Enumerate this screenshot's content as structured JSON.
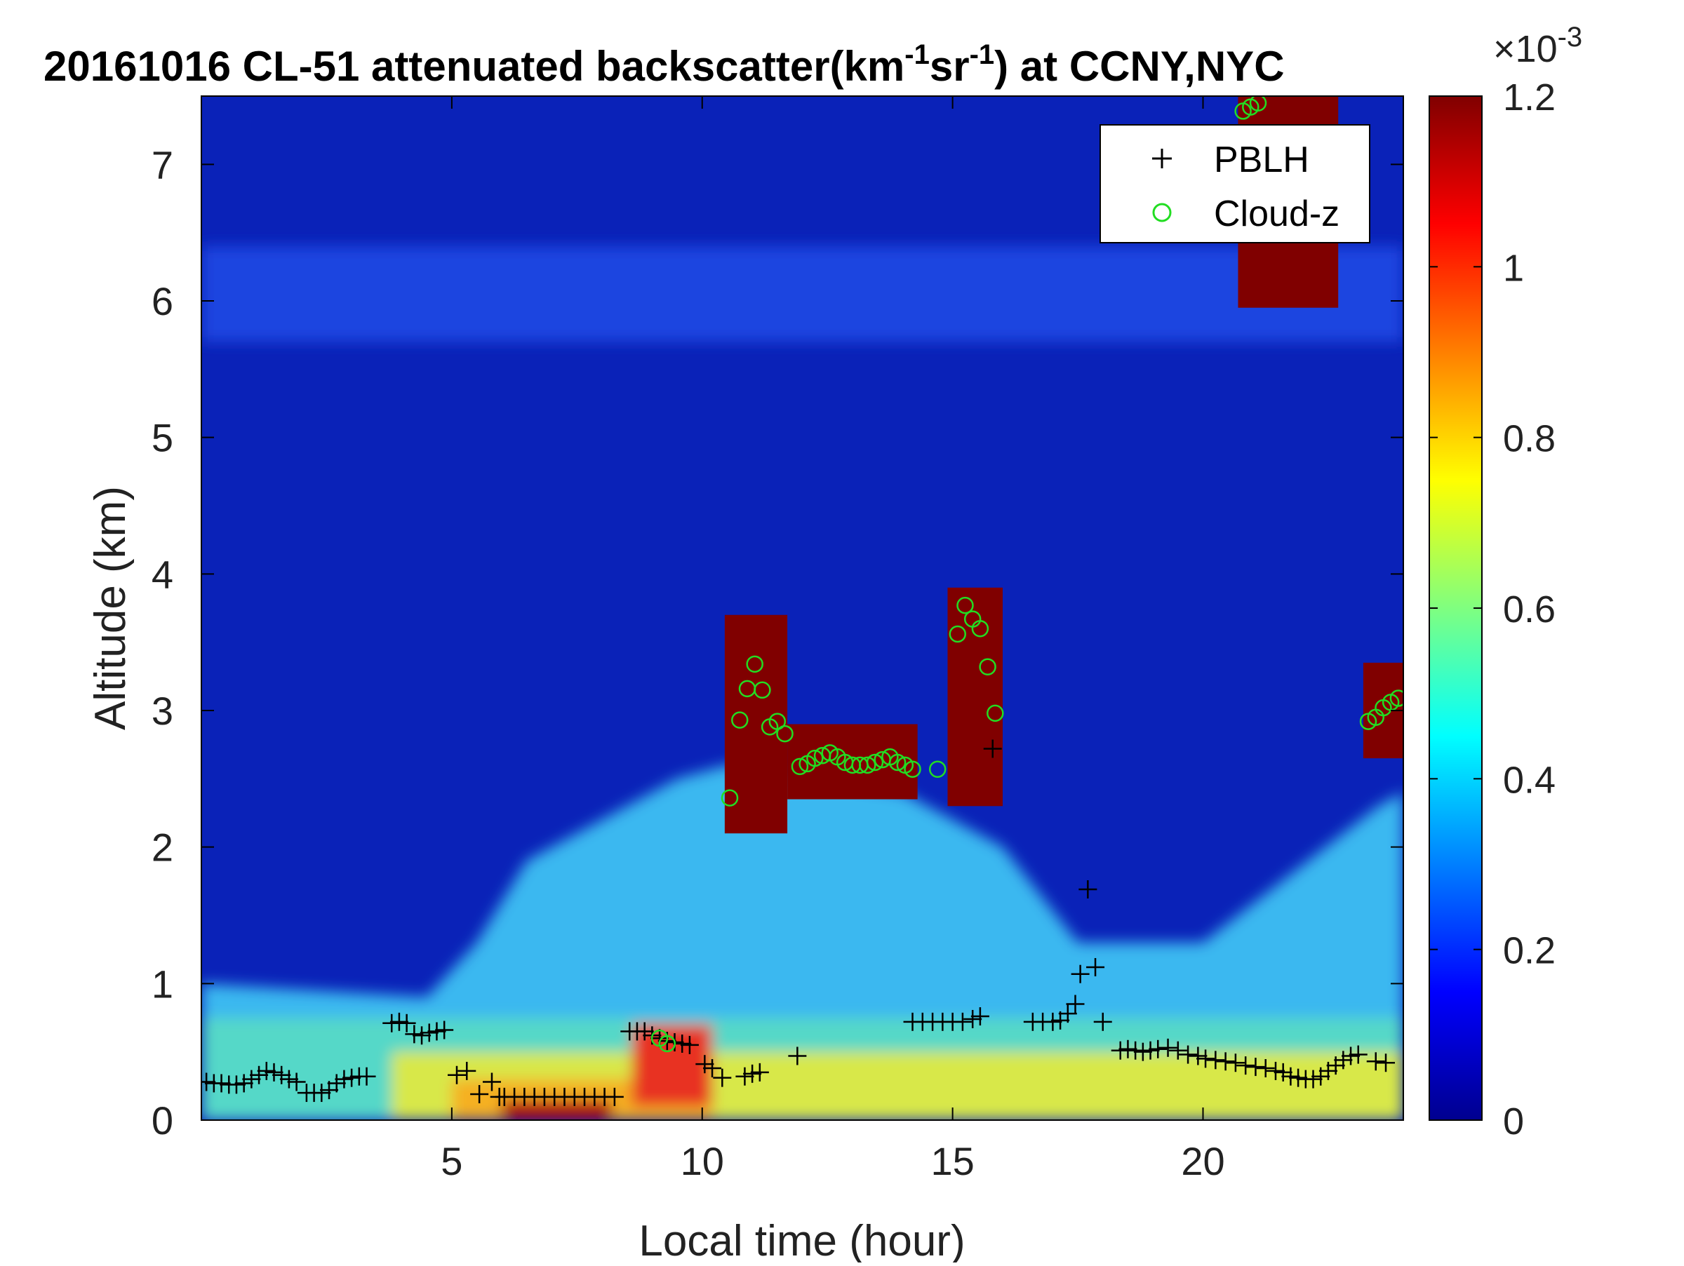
{
  "chart_data": {
    "type": "heatmap",
    "title": "20161016  CL-51 attenuated backscatter(km",
    "title_sup1": "-1",
    "title_mid": "sr",
    "title_sup2": "-1",
    "title_end": ") at CCNY,NYC",
    "xlabel": "Local time (hour)",
    "ylabel": "Altitude (km)",
    "xlim": [
      0,
      24
    ],
    "ylim": [
      0,
      7.5
    ],
    "x_ticks": [
      5,
      10,
      15,
      20
    ],
    "x_tick_labels": [
      "5",
      "10",
      "15",
      "20"
    ],
    "y_ticks": [
      0,
      1,
      2,
      3,
      4,
      5,
      6,
      7
    ],
    "y_tick_labels": [
      "0",
      "1",
      "2",
      "3",
      "4",
      "5",
      "6",
      "7"
    ],
    "colorbar": {
      "colormap": "jet",
      "range": [
        0,
        0.0012
      ],
      "ticks": [
        0,
        0.2,
        0.4,
        0.6,
        0.8,
        1,
        1.2
      ],
      "tick_labels": [
        "0",
        "0.2",
        "0.4",
        "0.6",
        "0.8",
        "1",
        "1.2"
      ],
      "exponent_base": "×10",
      "exponent_power": "-3"
    },
    "legend": {
      "placement": "top-right",
      "entries": [
        {
          "name": "PBLH",
          "marker": "plus",
          "color": "#000000"
        },
        {
          "name": "Cloud-z",
          "marker": "circle",
          "color": "#22dd22"
        }
      ]
    },
    "series": [
      {
        "name": "PBLH",
        "points": [
          [
            0.1,
            0.28
          ],
          [
            0.25,
            0.27
          ],
          [
            0.4,
            0.27
          ],
          [
            0.55,
            0.26
          ],
          [
            0.7,
            0.26
          ],
          [
            0.85,
            0.27
          ],
          [
            1.0,
            0.3
          ],
          [
            1.15,
            0.33
          ],
          [
            1.3,
            0.36
          ],
          [
            1.45,
            0.35
          ],
          [
            1.6,
            0.33
          ],
          [
            1.75,
            0.3
          ],
          [
            1.9,
            0.28
          ],
          [
            2.1,
            0.2
          ],
          [
            2.25,
            0.2
          ],
          [
            2.4,
            0.2
          ],
          [
            2.55,
            0.22
          ],
          [
            2.7,
            0.27
          ],
          [
            2.85,
            0.3
          ],
          [
            3.0,
            0.31
          ],
          [
            3.15,
            0.32
          ],
          [
            3.3,
            0.32
          ],
          [
            3.8,
            0.71
          ],
          [
            3.95,
            0.72
          ],
          [
            4.1,
            0.71
          ],
          [
            4.25,
            0.63
          ],
          [
            4.4,
            0.62
          ],
          [
            4.55,
            0.64
          ],
          [
            4.7,
            0.65
          ],
          [
            4.85,
            0.66
          ],
          [
            5.1,
            0.33
          ],
          [
            5.3,
            0.36
          ],
          [
            5.55,
            0.19
          ],
          [
            5.8,
            0.28
          ],
          [
            5.95,
            0.17
          ],
          [
            6.05,
            0.17
          ],
          [
            6.25,
            0.17
          ],
          [
            6.45,
            0.17
          ],
          [
            6.65,
            0.17
          ],
          [
            6.85,
            0.17
          ],
          [
            7.05,
            0.17
          ],
          [
            7.25,
            0.17
          ],
          [
            7.45,
            0.17
          ],
          [
            7.65,
            0.17
          ],
          [
            7.85,
            0.17
          ],
          [
            8.05,
            0.17
          ],
          [
            8.25,
            0.17
          ],
          [
            8.55,
            0.65
          ],
          [
            8.7,
            0.65
          ],
          [
            8.85,
            0.65
          ],
          [
            9.0,
            0.62
          ],
          [
            9.15,
            0.6
          ],
          [
            9.3,
            0.58
          ],
          [
            9.45,
            0.57
          ],
          [
            9.6,
            0.56
          ],
          [
            9.75,
            0.55
          ],
          [
            10.05,
            0.41
          ],
          [
            10.2,
            0.38
          ],
          [
            10.4,
            0.31
          ],
          [
            10.85,
            0.32
          ],
          [
            11.0,
            0.34
          ],
          [
            11.15,
            0.35
          ],
          [
            11.9,
            0.47
          ],
          [
            14.2,
            0.72
          ],
          [
            14.4,
            0.72
          ],
          [
            14.6,
            0.72
          ],
          [
            14.8,
            0.72
          ],
          [
            15.0,
            0.72
          ],
          [
            15.2,
            0.72
          ],
          [
            15.4,
            0.74
          ],
          [
            15.55,
            0.76
          ],
          [
            15.8,
            2.72
          ],
          [
            16.6,
            0.72
          ],
          [
            16.8,
            0.72
          ],
          [
            17.0,
            0.72
          ],
          [
            17.15,
            0.73
          ],
          [
            17.3,
            0.78
          ],
          [
            17.45,
            0.85
          ],
          [
            17.55,
            1.07
          ],
          [
            17.7,
            1.69
          ],
          [
            17.85,
            1.12
          ],
          [
            18.0,
            0.72
          ],
          [
            18.35,
            0.51
          ],
          [
            18.5,
            0.52
          ],
          [
            18.65,
            0.51
          ],
          [
            18.8,
            0.5
          ],
          [
            18.95,
            0.51
          ],
          [
            19.1,
            0.52
          ],
          [
            19.3,
            0.53
          ],
          [
            19.5,
            0.51
          ],
          [
            19.7,
            0.48
          ],
          [
            19.9,
            0.47
          ],
          [
            20.05,
            0.45
          ],
          [
            20.25,
            0.44
          ],
          [
            20.45,
            0.43
          ],
          [
            20.65,
            0.42
          ],
          [
            20.85,
            0.4
          ],
          [
            21.05,
            0.39
          ],
          [
            21.25,
            0.38
          ],
          [
            21.45,
            0.36
          ],
          [
            21.6,
            0.35
          ],
          [
            21.75,
            0.32
          ],
          [
            21.9,
            0.31
          ],
          [
            22.05,
            0.3
          ],
          [
            22.2,
            0.3
          ],
          [
            22.35,
            0.32
          ],
          [
            22.5,
            0.36
          ],
          [
            22.65,
            0.4
          ],
          [
            22.8,
            0.44
          ],
          [
            22.95,
            0.47
          ],
          [
            23.1,
            0.48
          ],
          [
            23.45,
            0.43
          ],
          [
            23.65,
            0.42
          ]
        ]
      },
      {
        "name": "Cloud-z",
        "points": [
          [
            9.15,
            0.6
          ],
          [
            9.3,
            0.56
          ],
          [
            10.55,
            2.36
          ],
          [
            10.75,
            2.93
          ],
          [
            10.9,
            3.16
          ],
          [
            11.05,
            3.34
          ],
          [
            11.2,
            3.15
          ],
          [
            11.35,
            2.88
          ],
          [
            11.5,
            2.92
          ],
          [
            11.65,
            2.83
          ],
          [
            11.95,
            2.59
          ],
          [
            12.1,
            2.61
          ],
          [
            12.25,
            2.65
          ],
          [
            12.4,
            2.67
          ],
          [
            12.55,
            2.69
          ],
          [
            12.7,
            2.66
          ],
          [
            12.85,
            2.62
          ],
          [
            13.0,
            2.6
          ],
          [
            13.15,
            2.6
          ],
          [
            13.3,
            2.6
          ],
          [
            13.45,
            2.62
          ],
          [
            13.6,
            2.64
          ],
          [
            13.75,
            2.66
          ],
          [
            13.9,
            2.62
          ],
          [
            14.05,
            2.6
          ],
          [
            14.2,
            2.57
          ],
          [
            14.7,
            2.57
          ],
          [
            15.1,
            3.56
          ],
          [
            15.25,
            3.77
          ],
          [
            15.4,
            3.67
          ],
          [
            15.55,
            3.6
          ],
          [
            15.7,
            3.32
          ],
          [
            15.85,
            2.98
          ],
          [
            20.8,
            7.39
          ],
          [
            20.95,
            7.42
          ],
          [
            21.1,
            7.45
          ],
          [
            23.3,
            2.92
          ],
          [
            23.45,
            2.95
          ],
          [
            23.6,
            3.02
          ],
          [
            23.75,
            3.06
          ],
          [
            23.9,
            3.09
          ]
        ]
      }
    ]
  }
}
